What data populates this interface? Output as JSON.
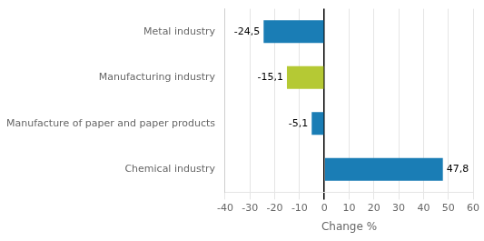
{
  "chart_data": {
    "type": "bar",
    "orientation": "horizontal",
    "categories": [
      "Metal industry",
      "Manufacturing industry",
      "Manufacture of paper and paper products",
      "Chemical industry"
    ],
    "values": [
      -24.5,
      -15.1,
      -5.1,
      47.8
    ],
    "value_labels": [
      "-24,5",
      "-15,1",
      "-5,1",
      "47,8"
    ],
    "data_labels": true,
    "colors": [
      "#1a7db5",
      "#b5c934",
      "#1a7db5",
      "#1a7db5"
    ],
    "xlabel": "Change %",
    "xlim": [
      -40,
      60
    ],
    "xticks": [
      -40,
      -30,
      -20,
      -10,
      0,
      10,
      20,
      30,
      40,
      50,
      60
    ],
    "grid": true
  }
}
